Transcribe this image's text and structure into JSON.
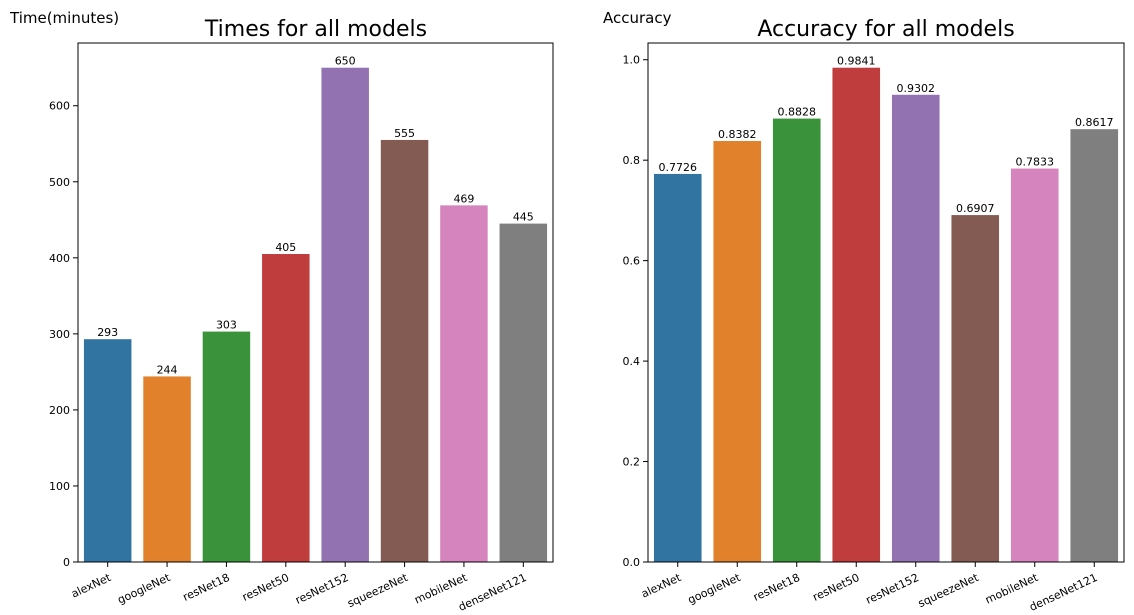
{
  "chart_data": [
    {
      "type": "bar",
      "title": "Times for all models",
      "ylabel": "Time(minutes)",
      "xlabel": "",
      "categories": [
        "alexNet",
        "googleNet",
        "resNet18",
        "resNet50",
        "resNet152",
        "squeezeNet",
        "mobileNet",
        "denseNet121"
      ],
      "values": [
        293,
        244,
        303,
        405,
        650,
        555,
        469,
        445
      ],
      "value_labels": [
        "293",
        "244",
        "303",
        "405",
        "650",
        "555",
        "469",
        "445"
      ],
      "ylim": [
        0,
        682.5
      ],
      "yticks": [
        0,
        100,
        200,
        300,
        400,
        500,
        600
      ],
      "ytick_labels": [
        "0",
        "100",
        "200",
        "300",
        "400",
        "500",
        "600"
      ],
      "grid": false,
      "colors": [
        "#3274a1",
        "#e1812c",
        "#3a923a",
        "#c03d3e",
        "#9372b2",
        "#845b53",
        "#d684bd",
        "#7f7f7f"
      ]
    },
    {
      "type": "bar",
      "title": "Accuracy for all models",
      "ylabel": "Accuracy",
      "xlabel": "",
      "categories": [
        "alexNet",
        "googleNet",
        "resNet18",
        "resNet50",
        "resNet152",
        "squeezeNet",
        "mobileNet",
        "denseNet121"
      ],
      "values": [
        0.7726,
        0.8382,
        0.8828,
        0.9841,
        0.9302,
        0.6907,
        0.7833,
        0.8617
      ],
      "value_labels": [
        "0.7726",
        "0.8382",
        "0.8828",
        "0.9841",
        "0.9302",
        "0.6907",
        "0.7833",
        "0.8617"
      ],
      "ylim": [
        0,
        1.0333
      ],
      "yticks": [
        0.0,
        0.2,
        0.4,
        0.6,
        0.8,
        1.0
      ],
      "ytick_labels": [
        "0.0",
        "0.2",
        "0.4",
        "0.6",
        "0.8",
        "1.0"
      ],
      "grid": false,
      "colors": [
        "#3274a1",
        "#e1812c",
        "#3a923a",
        "#c03d3e",
        "#9372b2",
        "#845b53",
        "#d684bd",
        "#7f7f7f"
      ]
    }
  ]
}
